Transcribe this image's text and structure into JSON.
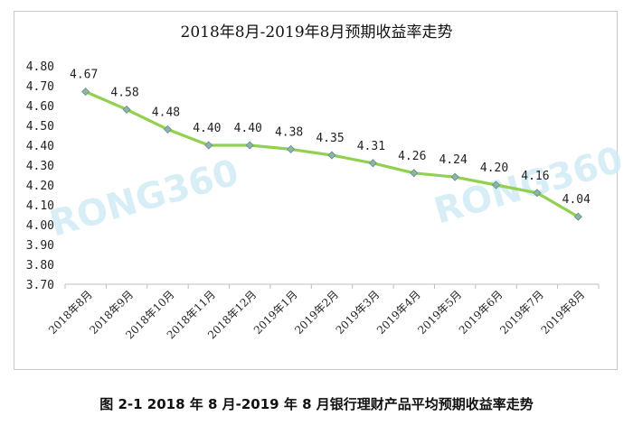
{
  "chart_data": {
    "type": "line",
    "title": "2018年8月-2019年8月预期收益率走势",
    "categories": [
      "2018年8月",
      "2018年9月",
      "2018年10月",
      "2018年11月",
      "2018年12月",
      "2019年1月",
      "2019年2月",
      "2019年3月",
      "2019年4月",
      "2019年5月",
      "2019年6月",
      "2019年7月",
      "2019年8月"
    ],
    "series": [
      {
        "values": [
          4.67,
          4.58,
          4.48,
          4.4,
          4.4,
          4.38,
          4.35,
          4.31,
          4.26,
          4.24,
          4.2,
          4.16,
          4.04
        ]
      }
    ],
    "data_labels": [
      "4.67",
      "4.58",
      "4.48",
      "4.40",
      "4.40",
      "4.38",
      "4.35",
      "4.31",
      "4.26",
      "4.24",
      "4.20",
      "4.16",
      "4.04"
    ],
    "ylim": [
      3.7,
      4.8
    ],
    "yticks": [
      "4.80",
      "4.70",
      "4.60",
      "4.50",
      "4.40",
      "4.30",
      "4.20",
      "4.10",
      "4.00",
      "3.90",
      "3.80",
      "3.70"
    ],
    "grid": false,
    "legend": "none",
    "colors": {
      "line": "#92d050",
      "marker": "#8fb3a7",
      "marker_edge": "#5f8f86"
    }
  },
  "watermark": [
    "RONG360",
    "RONG360"
  ],
  "caption": "图 2-1 2018 年 8 月-2019 年 8 月银行理财产品平均预期收益率走势"
}
